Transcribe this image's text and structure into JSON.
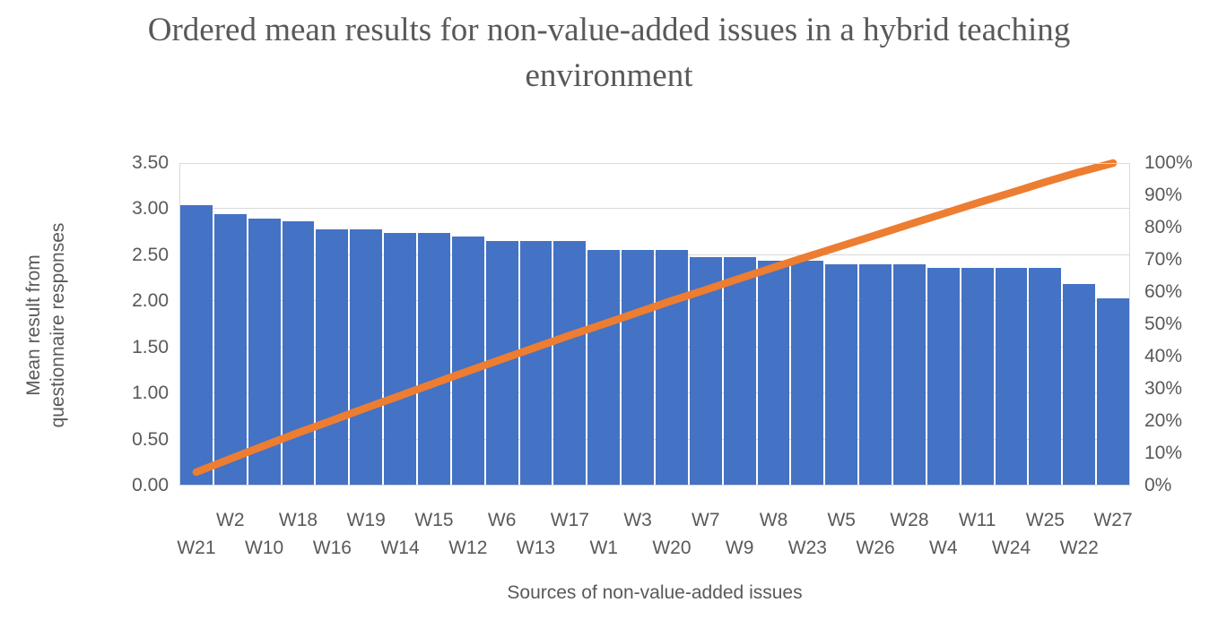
{
  "title": {
    "line1": "Ordered mean results for non-value-added issues in a hybrid teaching",
    "line2": "environment"
  },
  "chart_data": {
    "type": "bar",
    "subtype": "pareto-combo-bar-line",
    "title": "Ordered mean results for non-value-added issues in a hybrid teaching environment",
    "xlabel": "Sources of non-value-added issues",
    "ylabel_left_line1": "Mean result from",
    "ylabel_left_line2": "questionnaire responses",
    "legend": "none",
    "grid": true,
    "categories": [
      "W21",
      "W2",
      "W10",
      "W18",
      "W16",
      "W19",
      "W14",
      "W15",
      "W12",
      "W6",
      "W13",
      "W17",
      "W1",
      "W3",
      "W20",
      "W7",
      "W9",
      "W8",
      "W23",
      "W5",
      "W26",
      "W28",
      "W4",
      "W11",
      "W24",
      "W25",
      "W22",
      "W27"
    ],
    "series": [
      {
        "id": "mean-result-bars",
        "type": "bar",
        "axis": "left",
        "color": "#4472C4",
        "values": [
          3.04,
          2.95,
          2.9,
          2.87,
          2.78,
          2.78,
          2.74,
          2.74,
          2.7,
          2.65,
          2.65,
          2.65,
          2.56,
          2.56,
          2.56,
          2.48,
          2.48,
          2.44,
          2.44,
          2.4,
          2.4,
          2.4,
          2.36,
          2.36,
          2.36,
          2.36,
          2.19,
          2.03
        ]
      },
      {
        "id": "cumulative-percent-line",
        "type": "line",
        "axis": "right",
        "color": "#ED7D31",
        "values": [
          4.2,
          8.3,
          12.4,
          16.4,
          20.2,
          24.1,
          27.9,
          31.7,
          35.5,
          39.2,
          42.9,
          46.6,
          50.1,
          53.7,
          57.3,
          60.7,
          64.2,
          67.6,
          71.0,
          74.3,
          77.6,
          81.0,
          84.3,
          87.6,
          90.8,
          94.1,
          97.2,
          100.0
        ]
      }
    ],
    "axis_left": {
      "min": 0,
      "max": 3.5,
      "step": 0.5,
      "tick_labels": [
        "0.00",
        "0.50",
        "1.00",
        "1.50",
        "2.00",
        "2.50",
        "3.00",
        "3.50"
      ]
    },
    "axis_right": {
      "min": 0,
      "max": 100,
      "step": 10,
      "tick_labels": [
        "0%",
        "10%",
        "20%",
        "30%",
        "40%",
        "50%",
        "60%",
        "70%",
        "80%",
        "90%",
        "100%"
      ]
    }
  },
  "colors": {
    "bar": "#4472C4",
    "line": "#ED7D31",
    "grid": "#D9D9D9",
    "plot_border": "#D9D9D9",
    "axis_text": "#595959",
    "title_text": "#595959",
    "background": "#FFFFFF"
  }
}
